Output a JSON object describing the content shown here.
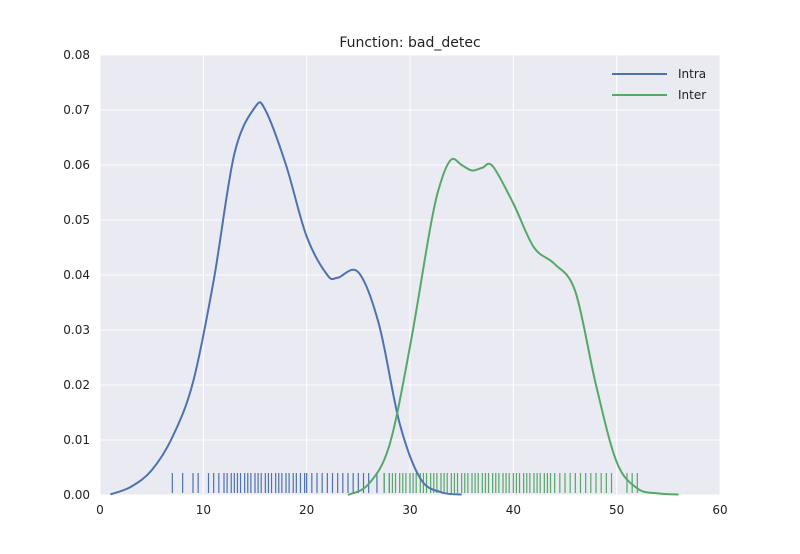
{
  "chart_data": {
    "type": "line",
    "title": "Function: bad_detec",
    "xlabel": "",
    "ylabel": "",
    "xlim": [
      0,
      60
    ],
    "ylim": [
      0,
      0.08
    ],
    "x_ticks": [
      0,
      10,
      20,
      30,
      40,
      50,
      60
    ],
    "x_tick_labels": [
      "0",
      "10",
      "20",
      "30",
      "40",
      "50",
      "60"
    ],
    "y_ticks": [
      0,
      0.01,
      0.02,
      0.03,
      0.04,
      0.05,
      0.06,
      0.07,
      0.08
    ],
    "y_tick_labels": [
      "0.00",
      "0.01",
      "0.02",
      "0.03",
      "0.04",
      "0.05",
      "0.06",
      "0.07",
      "0.08"
    ],
    "grid": true,
    "legend_position": "top-right",
    "background_color": "#EAEAF2",
    "series": [
      {
        "name": "Intra",
        "color": "#4C72B0",
        "x": [
          1,
          3,
          5,
          7,
          9,
          11,
          13,
          15,
          16,
          18,
          20,
          22,
          23,
          25,
          27,
          29,
          31,
          33,
          35
        ],
        "y": [
          0.0001,
          0.0015,
          0.0045,
          0.0105,
          0.0205,
          0.039,
          0.062,
          0.0705,
          0.07,
          0.06,
          0.047,
          0.04,
          0.0395,
          0.0405,
          0.031,
          0.013,
          0.003,
          0.0005,
          0.0001
        ],
        "rug": [
          7,
          8,
          9,
          9.5,
          10.5,
          11,
          11.5,
          12,
          12.3,
          12.7,
          13,
          13.3,
          13.6,
          14,
          14.3,
          14.6,
          15,
          15.3,
          15.6,
          16,
          16.3,
          16.6,
          17,
          17.3,
          17.6,
          18,
          18.3,
          18.7,
          19,
          19.4,
          19.8,
          20,
          20.5,
          21,
          21.5,
          22,
          22.5,
          23,
          23.5,
          24,
          24.5,
          25,
          25.5,
          26,
          26.8,
          27.5,
          28
        ]
      },
      {
        "name": "Inter",
        "color": "#55A868",
        "x": [
          24,
          26,
          28,
          30,
          32,
          33,
          34,
          35,
          36,
          37,
          38,
          40,
          42,
          44,
          46,
          48,
          50,
          52,
          54,
          56
        ],
        "y": [
          0.0,
          0.002,
          0.009,
          0.027,
          0.049,
          0.057,
          0.061,
          0.06,
          0.059,
          0.0595,
          0.0598,
          0.053,
          0.045,
          0.042,
          0.037,
          0.02,
          0.006,
          0.0012,
          0.0003,
          0.0001
        ],
        "rug": [
          27.5,
          28,
          28.3,
          28.6,
          29,
          29.3,
          29.6,
          30,
          30.3,
          30.6,
          31,
          31.3,
          31.6,
          32,
          32.3,
          32.6,
          33,
          33.3,
          33.6,
          34,
          34.3,
          34.6,
          35,
          35.3,
          35.6,
          36,
          36.3,
          36.6,
          37,
          37.3,
          37.6,
          38,
          38.3,
          38.6,
          39,
          39.3,
          39.6,
          40,
          40.3,
          40.6,
          41,
          41.3,
          41.6,
          42,
          42.3,
          42.6,
          43,
          43.3,
          43.6,
          44,
          44.5,
          45,
          45.5,
          46,
          46.5,
          47,
          47.5,
          48,
          48.5,
          49,
          49.5,
          51,
          51.5,
          52
        ]
      }
    ]
  }
}
